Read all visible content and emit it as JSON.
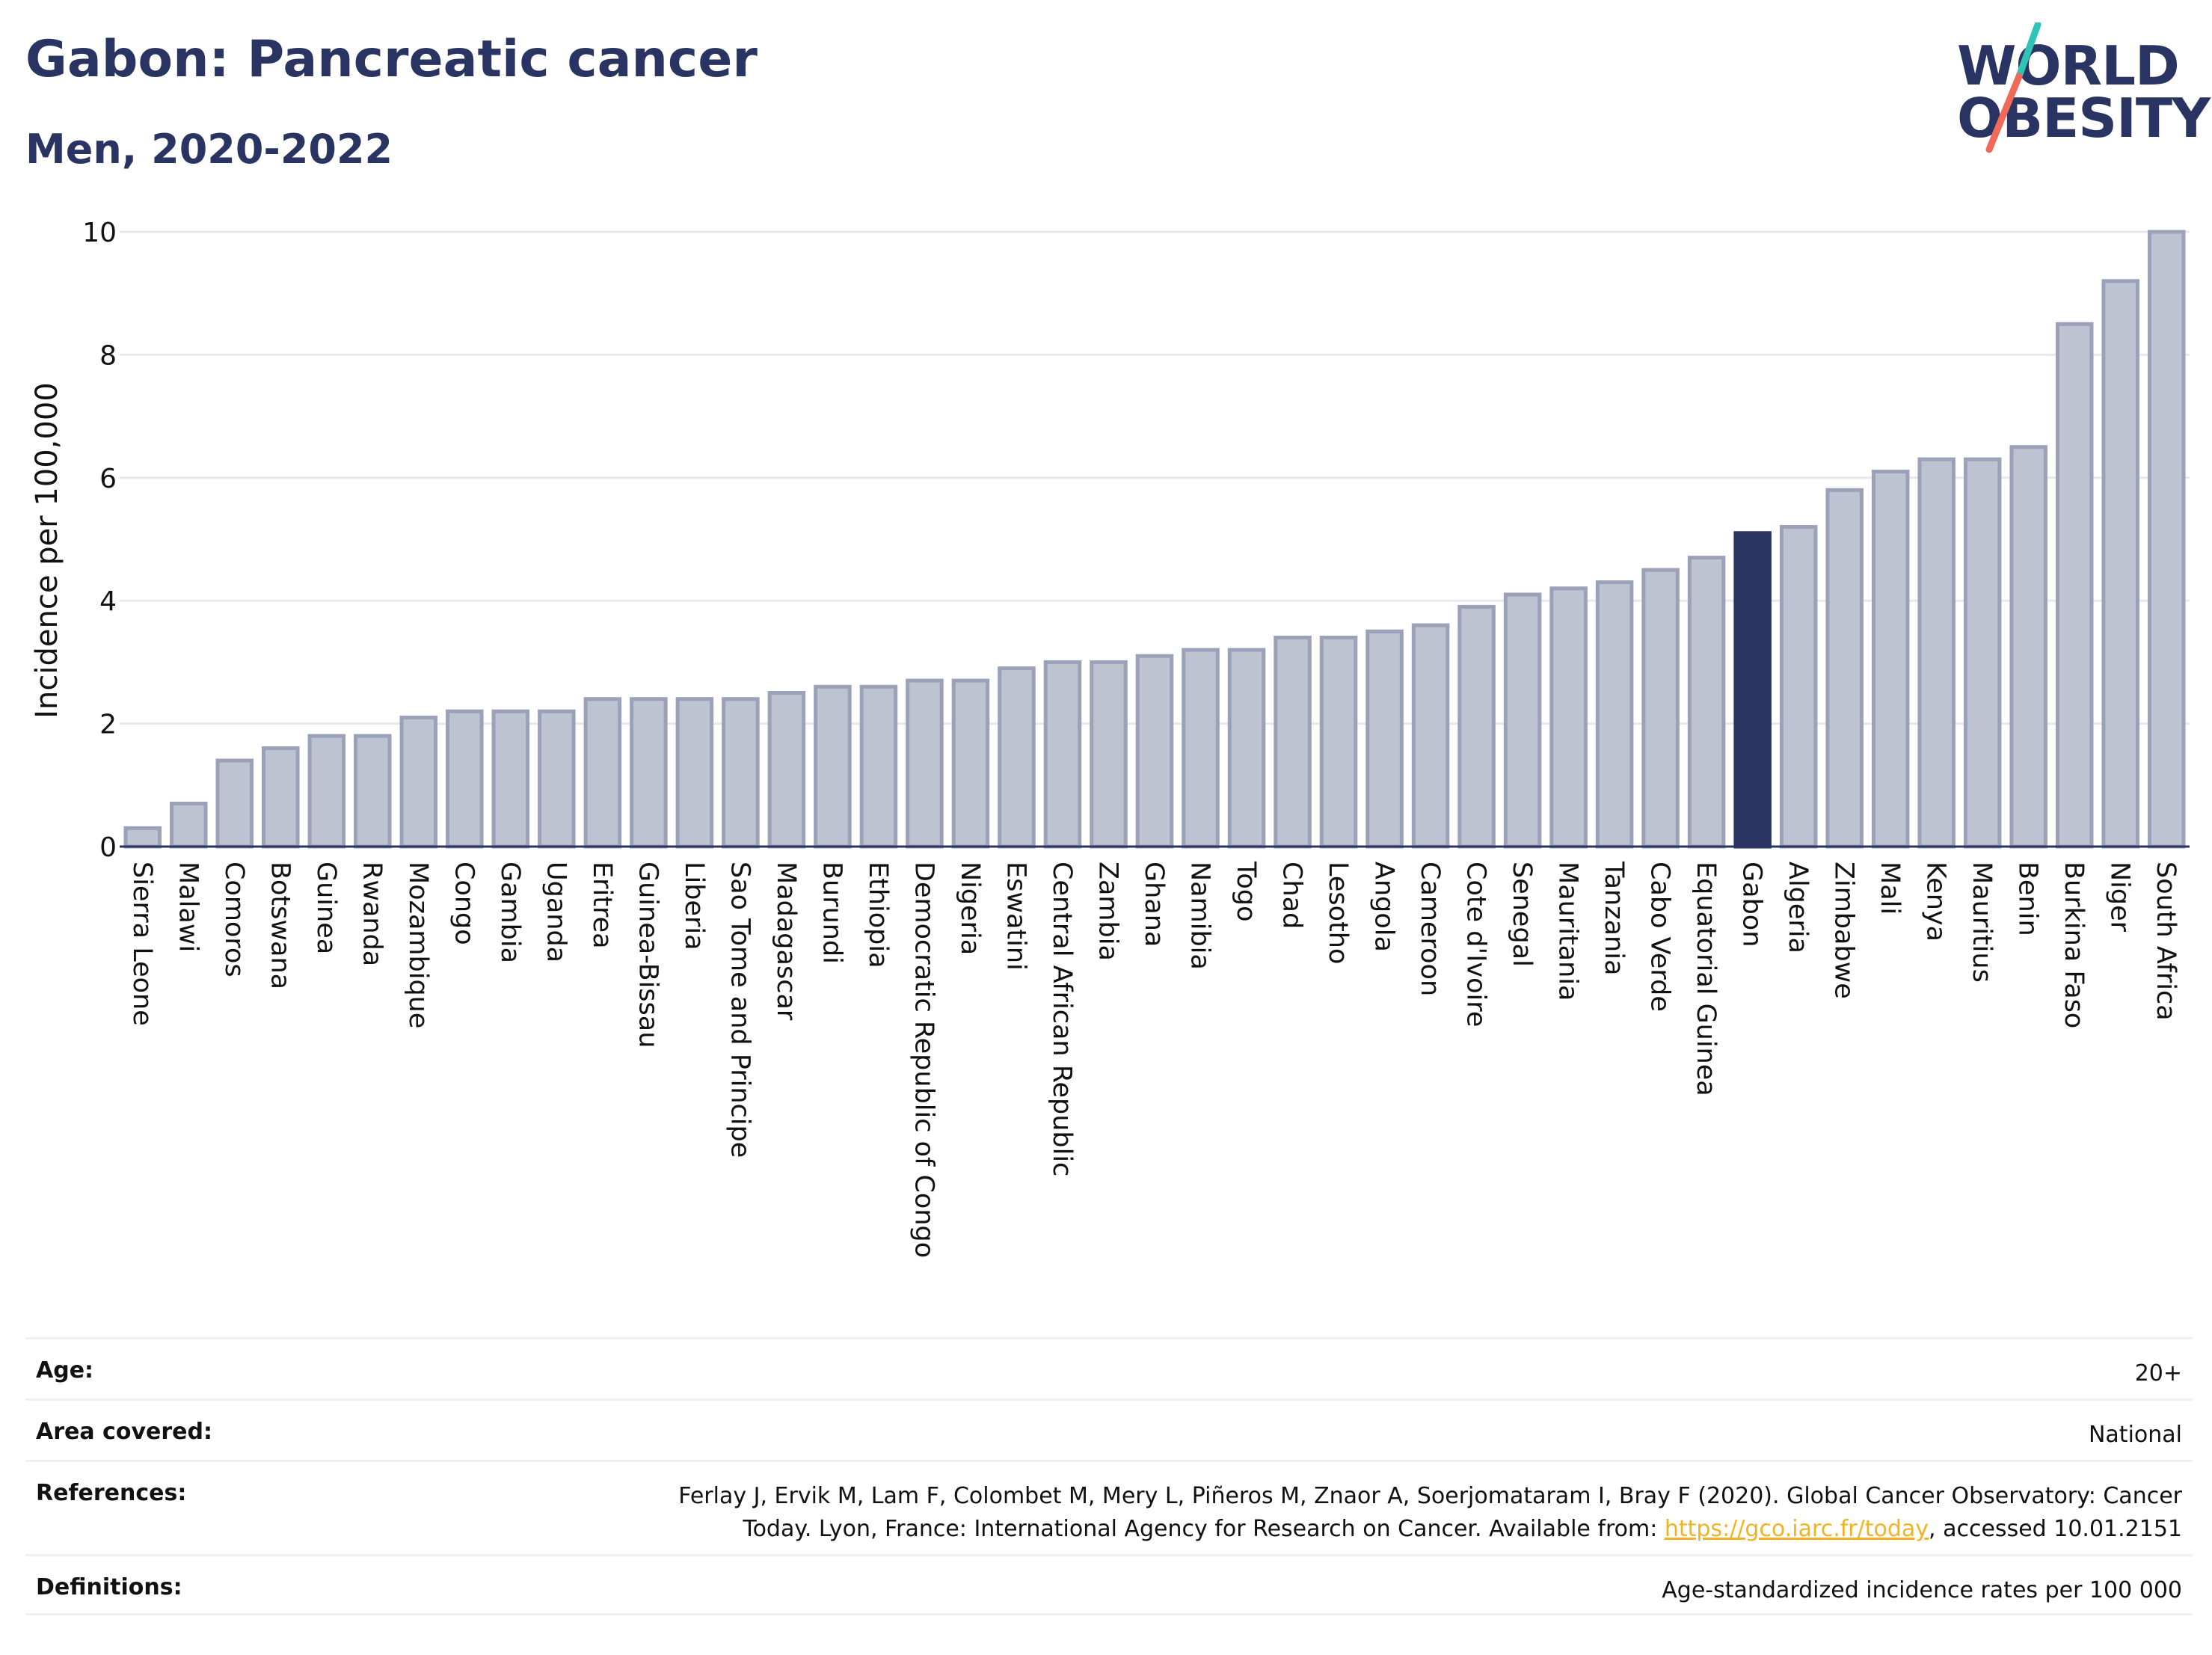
{
  "header": {
    "title": "Gabon: Pancreatic cancer",
    "subtitle": "Men, 2020-2022"
  },
  "logo": {
    "line1": "WORLD",
    "line2": "OBESITY",
    "colors": {
      "text": "#2a3462",
      "slash_top": "#2ec4b6",
      "slash_bottom": "#ef6a5a"
    }
  },
  "chart_data": {
    "type": "bar",
    "ylabel": "Incidence per 100,000",
    "xlabel": "",
    "ylim": [
      0,
      10
    ],
    "yticks": [
      0,
      2,
      4,
      6,
      8,
      10
    ],
    "highlight": "Gabon",
    "colors": {
      "bar": "#bec3d1",
      "bar_edge": "#9aa1b9",
      "highlight": "#2a3462",
      "grid": "#e6e8ee",
      "axis": "#2a3462"
    },
    "categories": [
      "Sierra Leone",
      "Malawi",
      "Comoros",
      "Botswana",
      "Guinea",
      "Rwanda",
      "Mozambique",
      "Congo",
      "Gambia",
      "Uganda",
      "Eritrea",
      "Guinea-Bissau",
      "Liberia",
      "Sao Tome and Principe",
      "Madagascar",
      "Burundi",
      "Ethiopia",
      "Democratic Republic of Congo",
      "Nigeria",
      "Eswatini",
      "Central African Republic",
      "Zambia",
      "Ghana",
      "Namibia",
      "Togo",
      "Chad",
      "Lesotho",
      "Angola",
      "Cameroon",
      "Cote d'Ivoire",
      "Senegal",
      "Mauritania",
      "Tanzania",
      "Cabo Verde",
      "Equatorial Guinea",
      "Gabon",
      "Algeria",
      "Zimbabwe",
      "Mali",
      "Kenya",
      "Mauritius",
      "Benin",
      "Burkina Faso",
      "Niger",
      "South Africa"
    ],
    "values": [
      0.3,
      0.7,
      1.4,
      1.6,
      1.8,
      1.8,
      2.1,
      2.2,
      2.2,
      2.2,
      2.4,
      2.4,
      2.4,
      2.4,
      2.5,
      2.6,
      2.6,
      2.7,
      2.7,
      2.9,
      3.0,
      3.0,
      3.1,
      3.2,
      3.2,
      3.4,
      3.4,
      3.5,
      3.6,
      3.9,
      4.1,
      4.2,
      4.3,
      4.5,
      4.7,
      5.1,
      5.2,
      5.8,
      6.1,
      6.3,
      6.3,
      6.5,
      8.5,
      9.2,
      10.0
    ]
  },
  "info": {
    "age_label": "Age:",
    "age_value": "20+",
    "area_label": "Area covered:",
    "area_value": "National",
    "references_label": "References:",
    "references_line1": "Ferlay J, Ervik M, Lam F, Colombet M, Mery L, Piñeros M, Znaor A, Soerjomataram I, Bray F (2020). Global Cancer Observatory: Cancer",
    "references_line2_pre": "Today. Lyon, France: International Agency for Research on Cancer. Available from: ",
    "references_link": "https://gco.iarc.fr/today",
    "references_line2_post": ", accessed 10.01.2151",
    "definitions_label": "Definitions:",
    "definitions_value": "Age-standardized incidence rates per 100 000"
  }
}
